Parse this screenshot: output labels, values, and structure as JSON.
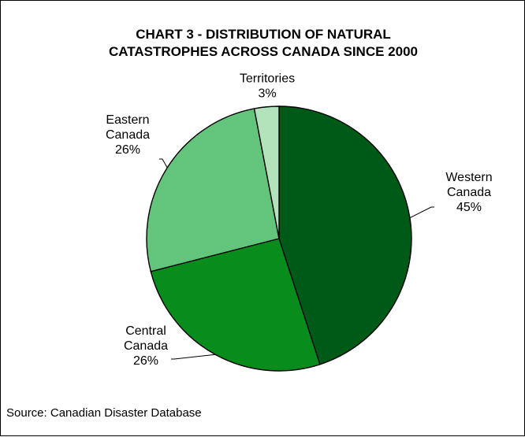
{
  "chart_data": {
    "type": "pie",
    "title_line1": "CHART 3 - DISTRIBUTION OF NATURAL",
    "title_line2": "CATASTROPHES ACROSS CANADA SINCE 2000",
    "source": "Source: Canadian Disaster Database",
    "slices": [
      {
        "label_lines": [
          "Western",
          "Canada"
        ],
        "value": 45,
        "value_label": "45%",
        "color": "#005a17"
      },
      {
        "label_lines": [
          "Central",
          "Canada"
        ],
        "value": 26,
        "value_label": "26%",
        "color": "#088c1c"
      },
      {
        "label_lines": [
          "Eastern",
          "Canada"
        ],
        "value": 26,
        "value_label": "26%",
        "color": "#63c57b"
      },
      {
        "label_lines": [
          "Territories"
        ],
        "value": 3,
        "value_label": "3%",
        "color": "#b3e3bb"
      }
    ]
  }
}
